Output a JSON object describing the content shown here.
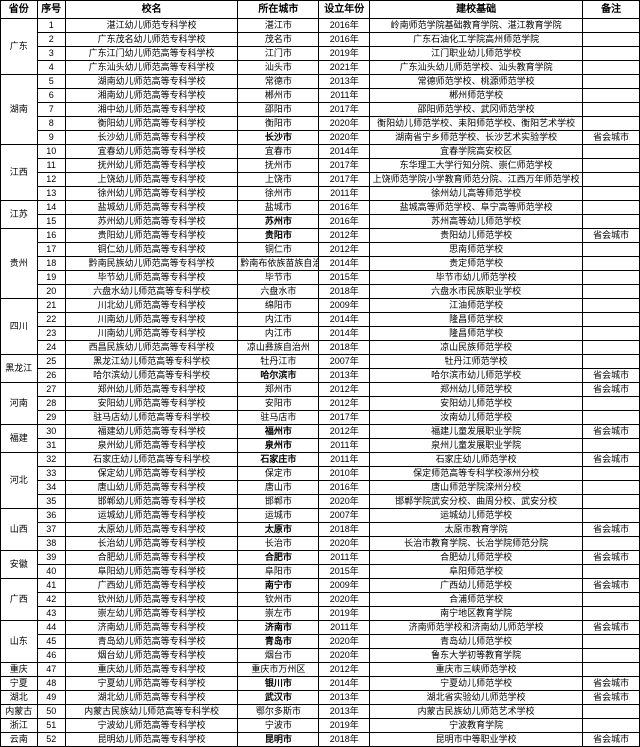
{
  "headers": {
    "province": "省份",
    "seq": "序号",
    "name": "校名",
    "city": "所在城市",
    "year": "设立年份",
    "basis": "建校基础",
    "note": "备注"
  },
  "provinces": [
    {
      "name": "广东",
      "rows": [
        {
          "seq": 1,
          "name": "湛江幼儿师范专科学校",
          "city": "湛江市",
          "year": "2016年",
          "basis": "岭南师范学院基础教育学院、湛江教育学院",
          "note": ""
        },
        {
          "seq": 2,
          "name": "广东茂名幼儿师范专科学校",
          "city": "茂名市",
          "year": "2016年",
          "basis": "广东石油化工学院高州师范学院",
          "note": ""
        },
        {
          "seq": 3,
          "name": "广东江门幼儿师范高等专科学校",
          "city": "江门市",
          "year": "2019年",
          "basis": "江门职业幼儿师范学校",
          "note": ""
        },
        {
          "seq": 4,
          "name": "广东汕头幼儿师范高等专科学校",
          "city": "汕头市",
          "year": "2021年",
          "basis": "广东汕头幼儿师范学校、汕头教育学院",
          "note": ""
        }
      ]
    },
    {
      "name": "湖南",
      "rows": [
        {
          "seq": 5,
          "name": "湖南幼儿师范高等专科学校",
          "city": "常德市",
          "year": "2013年",
          "basis": "常德师范学校、桃源师范学校",
          "note": ""
        },
        {
          "seq": 6,
          "name": "湘南幼儿师范高等专科学校",
          "city": "郴州市",
          "year": "2011年",
          "basis": "郴州师范学校",
          "note": ""
        },
        {
          "seq": 7,
          "name": "湘中幼儿师范高等专科学校",
          "city": "邵阳市",
          "year": "2017年",
          "basis": "邵阳师范学校、武冈师范学校",
          "note": ""
        },
        {
          "seq": 8,
          "name": "衡阳幼儿师范高等专科学校",
          "city": "衡阳市",
          "year": "2020年",
          "basis": "衡阳幼儿师范学校、耒阳师范学校、衡阳艺术学校",
          "note": ""
        },
        {
          "seq": 9,
          "name": "长沙幼儿师范高等专科学校",
          "city": "长沙市",
          "cityBold": true,
          "year": "2020年",
          "basis": "湖南省宁乡师范学校、长沙艺术实验学校",
          "note": "省会城市"
        }
      ]
    },
    {
      "name": "江西",
      "rows": [
        {
          "seq": 10,
          "name": "宜春幼儿师范高等专科学校",
          "city": "宜春市",
          "year": "2014年",
          "basis": "宜春学院高安校区",
          "note": ""
        },
        {
          "seq": 11,
          "name": "抚州幼儿师范高等专科学校",
          "city": "抚州市",
          "year": "2017年",
          "basis": "东华理工大学行知分院、崇仁师范学校",
          "note": ""
        },
        {
          "seq": 12,
          "name": "上饶幼儿师范高等专科学校",
          "city": "上饶市",
          "year": "2017年",
          "basis": "上饶师范学院小学教育师范分院、江西万年师范学校",
          "note": ""
        },
        {
          "seq": 13,
          "name": "徐州幼儿师范高等专科学校",
          "city": "徐州市",
          "year": "2011年",
          "basis": "徐州幼儿高等师范学校",
          "note": ""
        }
      ]
    },
    {
      "name": "江苏",
      "rows": [
        {
          "seq": 14,
          "name": "盐城幼儿师范高等专科学校",
          "city": "盐城市",
          "year": "2016年",
          "basis": "盐城高等师范学校、阜宁高等师范学校",
          "note": ""
        },
        {
          "seq": 15,
          "name": "苏州幼儿师范高等专科学校",
          "city": "苏州市",
          "cityBold": true,
          "year": "2016年",
          "basis": "苏州高等幼儿师范学校",
          "note": ""
        }
      ]
    },
    {
      "name": "贵州",
      "rows": [
        {
          "seq": 16,
          "name": "贵阳幼儿师范高等专科学校",
          "city": "贵阳市",
          "cityBold": true,
          "year": "2012年",
          "basis": "贵阳幼儿师范学校",
          "note": "省会城市"
        },
        {
          "seq": 17,
          "name": "铜仁幼儿师范高等专科学校",
          "city": "铜仁市",
          "year": "2012年",
          "basis": "思南师范学校",
          "note": ""
        },
        {
          "seq": 18,
          "name": "黔南民族幼儿师范高等专科学校",
          "city": "黔南布依族苗族自治",
          "year": "2014年",
          "basis": "贵定师范学校",
          "note": ""
        },
        {
          "seq": 19,
          "name": "毕节幼儿师范高等专科学校",
          "city": "毕节市",
          "year": "2015年",
          "basis": "毕节市幼儿师范学校",
          "note": ""
        },
        {
          "seq": 20,
          "name": "六盘水幼儿师范高等专科学校",
          "city": "六盘水市",
          "year": "2018年",
          "basis": "六盘水市民族职业学校",
          "note": ""
        }
      ]
    },
    {
      "name": "四川",
      "rows": [
        {
          "seq": 21,
          "name": "川北幼儿师范高等专科学校",
          "city": "绵阳市",
          "year": "2009年",
          "basis": "江油师范学校",
          "note": ""
        },
        {
          "seq": 22,
          "name": "川南幼儿师范高等专科学校",
          "city": "内江市",
          "year": "2014年",
          "basis": "隆昌师范学校",
          "note": ""
        },
        {
          "seq": 23,
          "name": "川南幼儿师范高等专科学校",
          "city": "内江市",
          "year": "2014年",
          "basis": "隆昌师范学校",
          "note": ""
        },
        {
          "seq": 24,
          "name": "西昌民族幼儿师范高等专科学校",
          "city": "凉山彝族自治州",
          "year": "2018年",
          "basis": "凉山民族师范学校",
          "note": ""
        }
      ]
    },
    {
      "name": "黑龙江",
      "rows": [
        {
          "seq": 25,
          "name": "黑龙江幼儿师范高等专科学校",
          "city": "牡丹江市",
          "year": "2007年",
          "basis": "牡丹江师范学校",
          "note": ""
        },
        {
          "seq": 26,
          "name": "哈尔滨幼儿师范高等专科学校",
          "city": "哈尔滨市",
          "cityBold": true,
          "year": "2013年",
          "basis": "哈尔滨市幼儿师范学校",
          "note": "省会城市"
        }
      ]
    },
    {
      "name": "河南",
      "rows": [
        {
          "seq": 27,
          "name": "郑州幼儿师范高等专科学校",
          "city": "郑州市",
          "year": "2012年",
          "basis": "郑州幼儿师范学校",
          "note": "省会城市"
        },
        {
          "seq": 28,
          "name": "安阳幼儿师范高等专科学校",
          "city": "安阳市",
          "year": "2012年",
          "basis": "安阳幼儿师范学校",
          "note": ""
        },
        {
          "seq": 29,
          "name": "驻马店幼儿师范高等专科学校",
          "city": "驻马店市",
          "year": "2017年",
          "basis": "汝南幼儿师范学校",
          "note": ""
        }
      ]
    },
    {
      "name": "福建",
      "rows": [
        {
          "seq": 30,
          "name": "福建幼儿师范高等专科学校",
          "city": "福州市",
          "cityBold": true,
          "year": "2012年",
          "basis": "福建儿童发展职业学院",
          "note": "省会城市"
        },
        {
          "seq": 31,
          "name": "泉州幼儿师范高等专科学校",
          "city": "泉州市",
          "cityBold": true,
          "year": "2011年",
          "basis": "泉州儿童发展职业学院",
          "note": ""
        }
      ]
    },
    {
      "name": "河北",
      "rows": [
        {
          "seq": 32,
          "name": "石家庄幼儿师范高等专科学校",
          "city": "石家庄市",
          "cityBold": true,
          "year": "2011年",
          "basis": "石家庄幼儿师范学校",
          "note": "省会城市"
        },
        {
          "seq": 33,
          "name": "保定幼儿师范高等专科学校",
          "city": "保定市",
          "year": "2010年",
          "basis": "保定师范高等专科学校涿州分校",
          "note": ""
        },
        {
          "seq": 34,
          "name": "唐山幼儿师范高等专科学校",
          "city": "唐山市",
          "year": "2016年",
          "basis": "唐山师范学院滦州分校",
          "note": ""
        },
        {
          "seq": 35,
          "name": "邯郸幼儿师范高等专科学校",
          "city": "邯郸市",
          "year": "2020年",
          "basis": "邯郸学院武安分校、曲周分校、武安分校",
          "note": ""
        }
      ]
    },
    {
      "name": "山西",
      "rows": [
        {
          "seq": 36,
          "name": "运城幼儿师范高等专科学校",
          "city": "运城市",
          "year": "2007年",
          "basis": "运城幼儿师范学校",
          "note": ""
        },
        {
          "seq": 37,
          "name": "太原幼儿师范高等专科学校",
          "city": "太原市",
          "cityBold": true,
          "year": "2018年",
          "basis": "太原市教育学院",
          "note": "省会城市"
        },
        {
          "seq": 38,
          "name": "长治幼儿师范高等专科学校",
          "city": "长治市",
          "year": "2020年",
          "basis": "长治市教育学院、长治学院师范分院",
          "note": ""
        }
      ]
    },
    {
      "name": "安徽",
      "rows": [
        {
          "seq": 39,
          "name": "合肥幼儿师范高等专科学校",
          "city": "合肥市",
          "cityBold": true,
          "year": "2011年",
          "basis": "合肥幼儿师范学校",
          "note": "省会城市"
        },
        {
          "seq": 40,
          "name": "阜阳幼儿师范高等专科学校",
          "city": "阜阳市",
          "year": "2015年",
          "basis": "阜阳师范学校",
          "note": ""
        }
      ]
    },
    {
      "name": "广西",
      "rows": [
        {
          "seq": 41,
          "name": "广西幼儿师范高等专科学校",
          "city": "南宁市",
          "cityBold": true,
          "year": "2009年",
          "basis": "广西幼儿师范学校",
          "note": "省会城市"
        },
        {
          "seq": 42,
          "name": "钦州幼儿师范高等专科学校",
          "city": "钦州市",
          "year": "2020年",
          "basis": "合浦师范学校",
          "note": ""
        },
        {
          "seq": 43,
          "name": "崇左幼儿师范高等专科学校",
          "city": "崇左市",
          "year": "2019年",
          "basis": "南宁地区教育学院",
          "note": ""
        }
      ]
    },
    {
      "name": "山东",
      "rows": [
        {
          "seq": 44,
          "name": "济南幼儿师范高等专科学校",
          "city": "济南市",
          "cityBold": true,
          "year": "2011年",
          "basis": "济南师范学校和济南幼儿师范学校",
          "note": "省会城市"
        },
        {
          "seq": 45,
          "name": "青岛幼儿师范高等专科学校",
          "city": "青岛市",
          "cityBold": true,
          "year": "2020年",
          "basis": "青岛幼儿师范学校",
          "note": ""
        },
        {
          "seq": 46,
          "name": "烟台幼儿师范高等专科学校",
          "city": "烟台市",
          "year": "2020年",
          "basis": "鲁东大学初等教育学院",
          "note": ""
        }
      ]
    },
    {
      "name": "重庆",
      "rows": [
        {
          "seq": 47,
          "name": "重庆幼儿师范高等专科学校",
          "city": "重庆市万州区",
          "year": "2012年",
          "basis": "重庆市三峡师范学校",
          "note": ""
        }
      ]
    },
    {
      "name": "宁夏",
      "rows": [
        {
          "seq": 48,
          "name": "宁夏幼儿师范高等专科学校",
          "city": "银川市",
          "cityBold": true,
          "year": "2014年",
          "basis": "宁夏幼儿师范学校",
          "note": "省会城市"
        }
      ]
    },
    {
      "name": "湖北",
      "rows": [
        {
          "seq": 49,
          "name": "湖北幼儿师范高等专科学校",
          "city": "武汉市",
          "cityBold": true,
          "year": "2013年",
          "basis": "湖北省实验幼儿师范学校",
          "note": "省会城市"
        }
      ]
    },
    {
      "name": "内蒙古",
      "rows": [
        {
          "seq": 50,
          "name": "内蒙古民族幼儿师范高等专科学校",
          "city": "鄂尔多斯市",
          "year": "2013年",
          "basis": "内蒙古民族幼儿师范艺术学校",
          "note": ""
        }
      ]
    },
    {
      "name": "浙江",
      "rows": [
        {
          "seq": 51,
          "name": "宁波幼儿师范高等专科学校",
          "city": "宁波市",
          "year": "2019年",
          "basis": "宁波教育学院",
          "note": ""
        }
      ]
    },
    {
      "name": "云南",
      "rows": [
        {
          "seq": 52,
          "name": "昆明幼儿师范高等专科学校",
          "city": "昆明市",
          "cityBold": true,
          "year": "2018年",
          "basis": "昆明市中等职业学校",
          "note": "省会城市"
        }
      ]
    }
  ]
}
